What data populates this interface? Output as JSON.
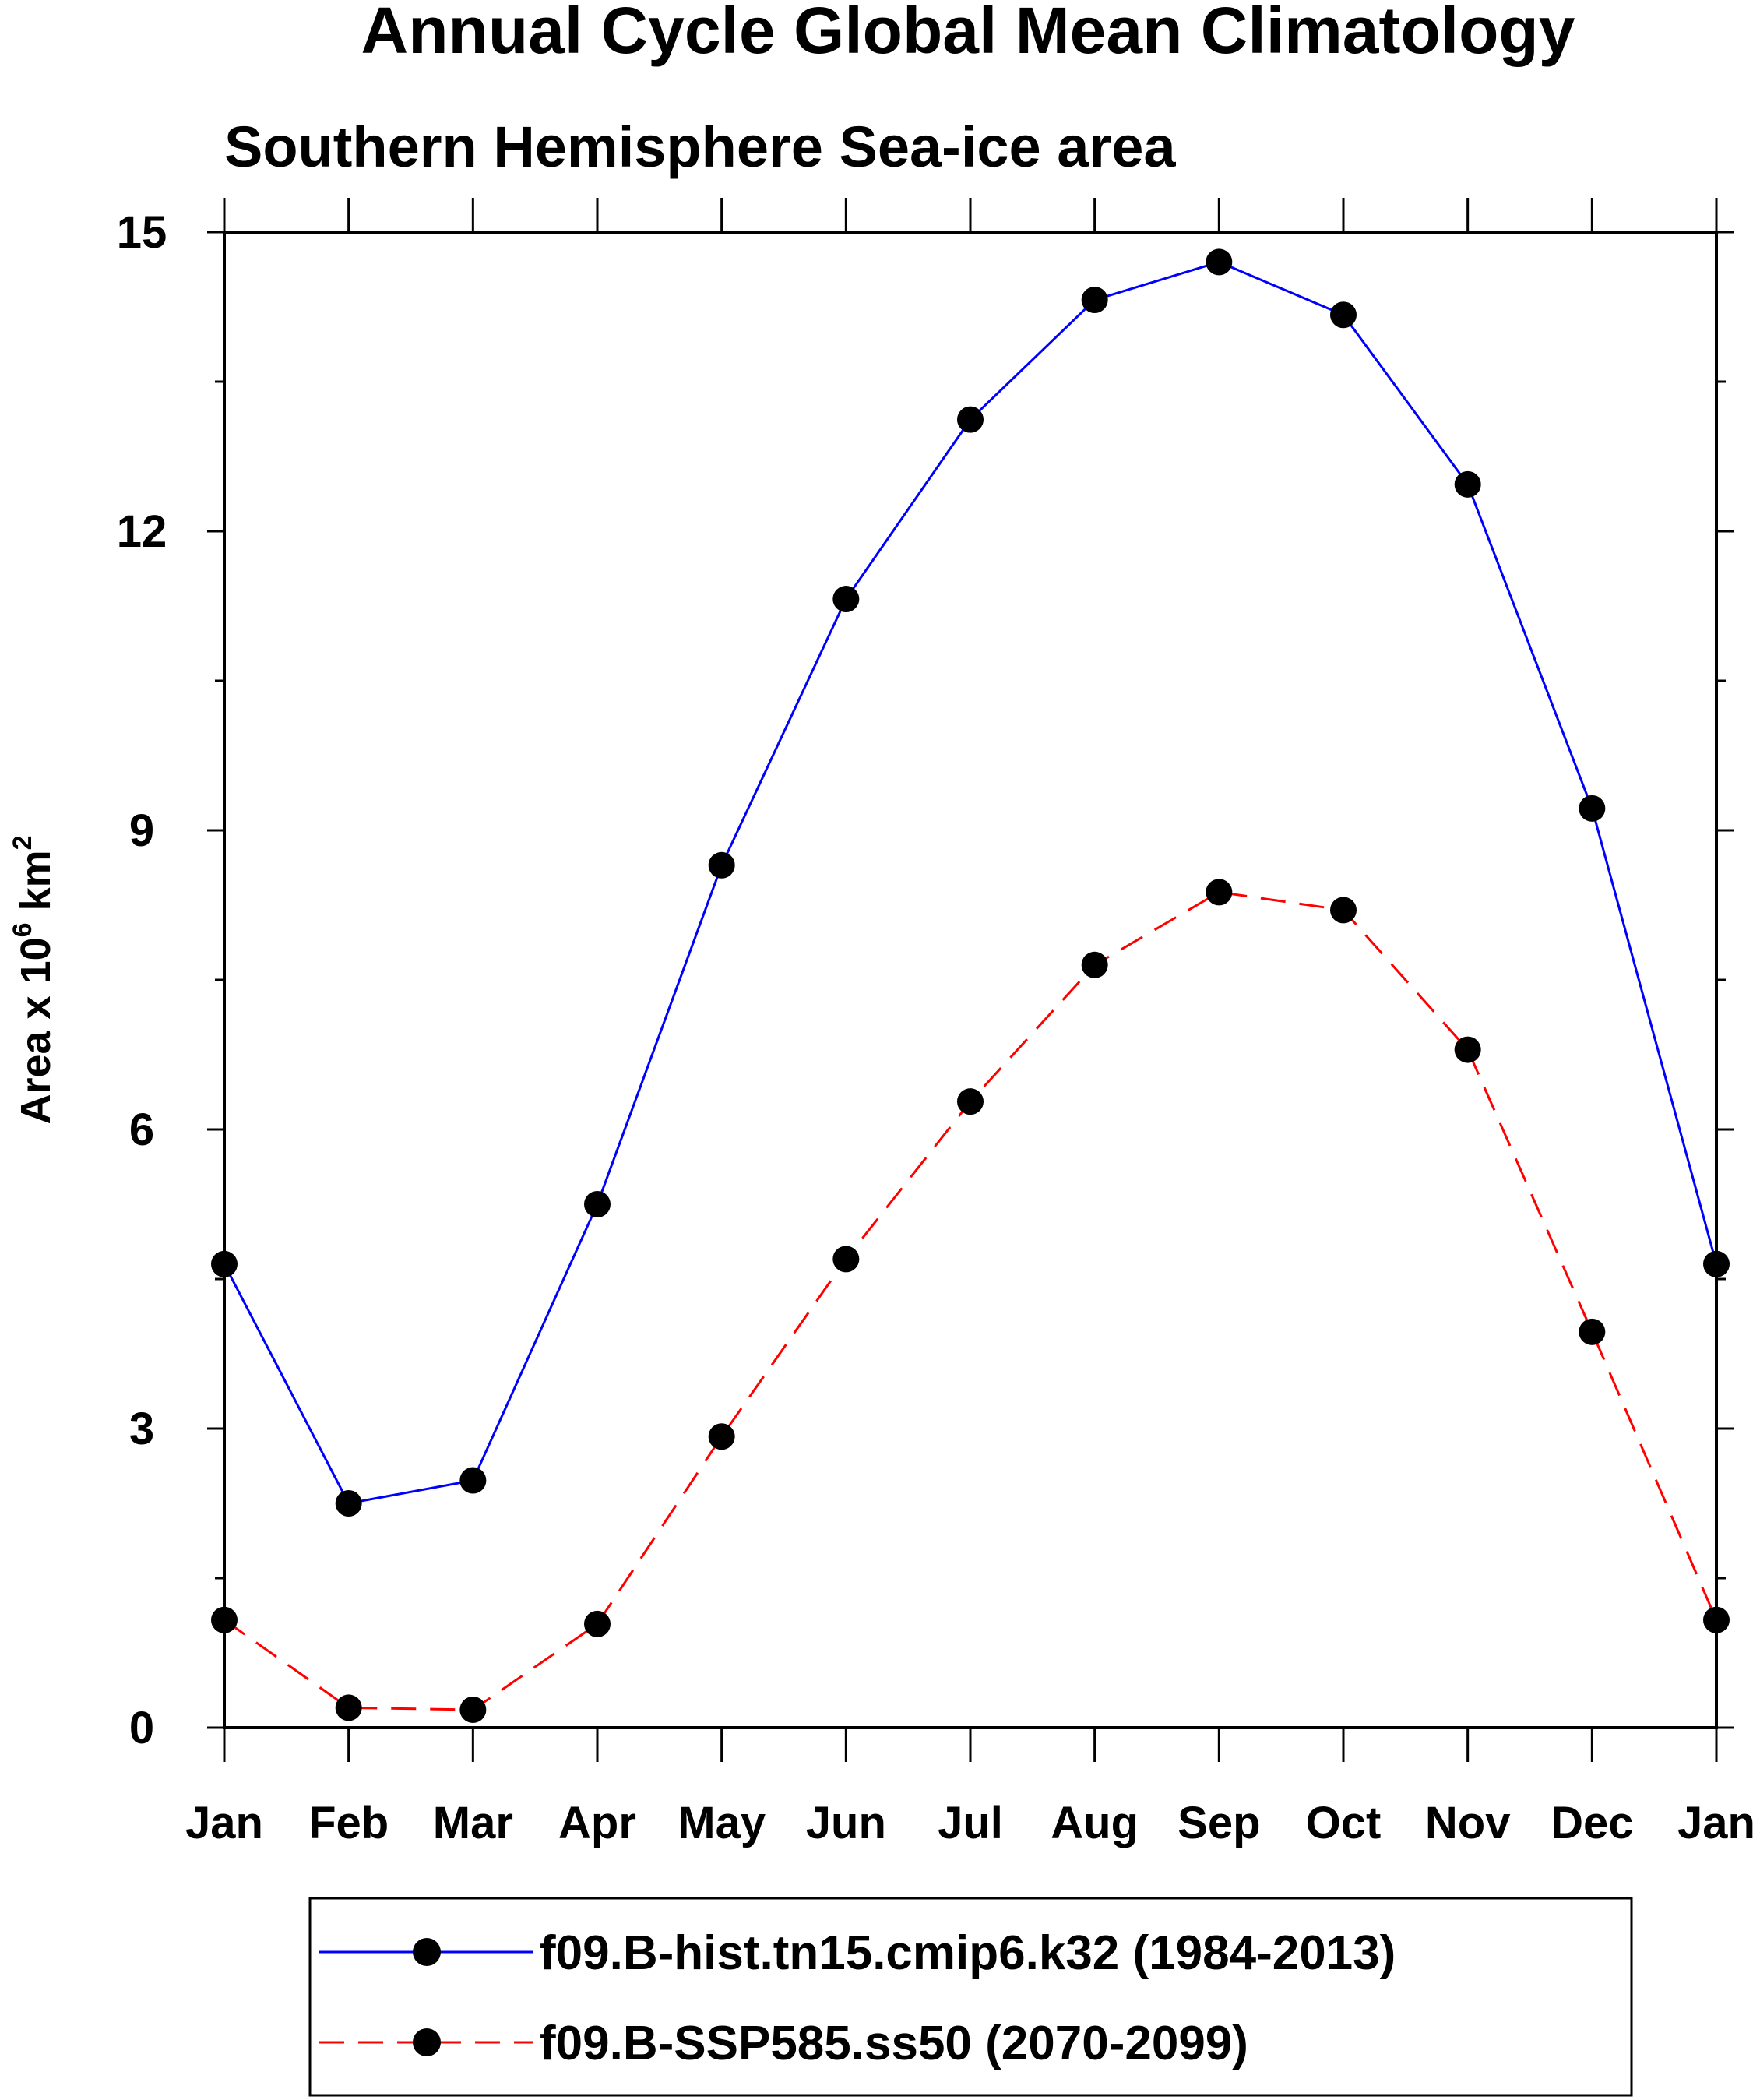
{
  "chart_data": {
    "type": "line",
    "title": "Annual Cycle Global Mean Climatology",
    "subtitle": "Southern Hemisphere Sea-ice area",
    "ylabel_parts": {
      "base": "Area x 10",
      "exp1": "6",
      "unit": " km",
      "exp2": "2"
    },
    "categories": [
      "Jan",
      "Feb",
      "Mar",
      "Apr",
      "May",
      "Jun",
      "Jul",
      "Aug",
      "Sep",
      "Oct",
      "Nov",
      "Dec",
      "Jan"
    ],
    "ylim": [
      0,
      15
    ],
    "yticks": [
      0,
      3,
      6,
      9,
      12,
      15
    ],
    "series": [
      {
        "name": "f09.B-hist.tn15.cmip6.k32 (1984-2013)",
        "color": "#0000ff",
        "dash": "solid",
        "values": [
          4.65,
          2.25,
          2.48,
          5.25,
          8.65,
          11.32,
          13.12,
          14.32,
          14.7,
          14.17,
          12.47,
          9.22,
          4.65
        ]
      },
      {
        "name": "f09.B-SSP585.ss50 (2070-2099)",
        "color": "#ff0000",
        "dash": "dashed",
        "values": [
          1.08,
          0.2,
          0.18,
          1.04,
          2.92,
          4.7,
          6.28,
          7.65,
          8.38,
          8.2,
          6.8,
          3.97,
          1.08
        ]
      }
    ]
  }
}
